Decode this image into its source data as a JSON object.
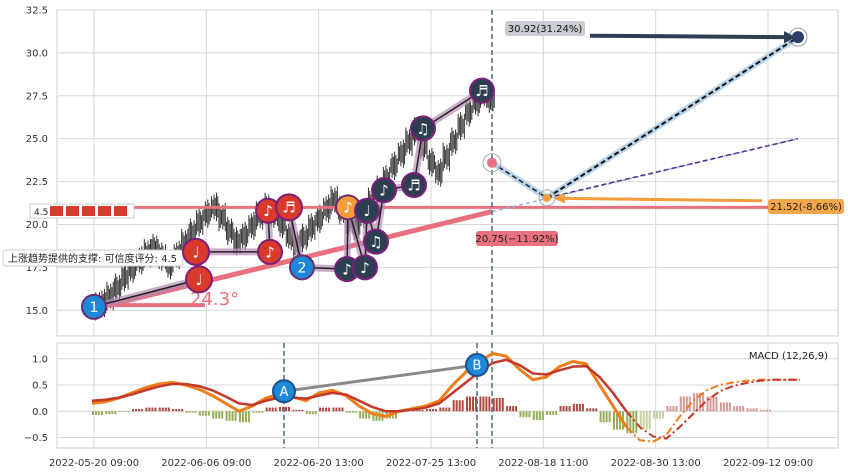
{
  "chart_data": [
    {
      "type": "candlestick-with-trendlines",
      "ylim": [
        13.5,
        32.5
      ],
      "yticks": [
        "15.0",
        "17.5",
        "20.0",
        "22.5",
        "25.0",
        "27.5",
        "30.0",
        "32.5"
      ],
      "ytick_values": [
        15.0,
        17.5,
        20.0,
        22.5,
        25.0,
        27.5,
        30.0,
        32.5
      ],
      "xticks": [
        "2022-05-20 09:00",
        "2022-06-06 09:00",
        "2022-06-20 13:00",
        "2022-07-25 13:00",
        "2022-08-18 11:00",
        "2022-08-30 13:00",
        "2022-09-12 09:00"
      ],
      "grid": true,
      "price_series": [
        15.2,
        15.4,
        15.8,
        16.3,
        16.9,
        17.4,
        17.9,
        18.3,
        18.6,
        18.1,
        17.6,
        18.2,
        18.9,
        19.5,
        20.1,
        20.6,
        21.0,
        20.4,
        19.6,
        19.0,
        19.3,
        19.9,
        20.5,
        21.0,
        20.6,
        20.0,
        19.3,
        18.8,
        19.2,
        19.8,
        20.3,
        20.9,
        21.4,
        20.8,
        20.2,
        19.8,
        20.5,
        21.3,
        22.0,
        22.6,
        23.4,
        24.1,
        24.8,
        25.4,
        24.5,
        23.6,
        23.0,
        23.9,
        24.8,
        25.7,
        26.5,
        27.1,
        27.6,
        27.3
      ],
      "support_line": {
        "from": [
          15.2
        ],
        "to": [
          20.75
        ]
      },
      "resistance_line": {
        "value": 21.0
      },
      "angle_label": "24.3°",
      "support_label": "上涨趋势提供的支撑: 可信度评分: 4.5",
      "rating_label": "4.5",
      "anchors": [
        "1",
        "2",
        "A",
        "B"
      ],
      "note_markers": [
        "♩",
        "♪",
        "♫",
        "♬"
      ],
      "annotations": [
        {
          "label": "30.92(31.24%)",
          "value": 30.92
        },
        {
          "label": "21.52(-8.66%)",
          "value": 21.52
        },
        {
          "label": "20.75(−11.92%)",
          "value": 20.75
        }
      ],
      "current_price": 23.6
    },
    {
      "type": "macd",
      "title": "MACD (12,26,9)",
      "ylim": [
        -0.7,
        1.3
      ],
      "yticks": [
        "−0.5",
        "0.0",
        "0.5",
        "1.0"
      ],
      "ytick_values": [
        -0.5,
        0.0,
        0.5,
        1.0
      ],
      "macd": [
        0.15,
        0.18,
        0.25,
        0.35,
        0.45,
        0.52,
        0.55,
        0.5,
        0.42,
        0.3,
        0.15,
        0.0,
        0.1,
        0.25,
        0.32,
        0.28,
        0.2,
        0.35,
        0.4,
        0.3,
        0.1,
        -0.05,
        -0.1,
        0.0,
        0.05,
        0.1,
        0.2,
        0.5,
        0.75,
        0.95,
        1.1,
        1.05,
        0.8,
        0.6,
        0.65,
        0.85,
        0.95,
        0.9,
        0.5,
        0.1,
        -0.3,
        -0.55,
        -0.58,
        -0.45,
        -0.1,
        0.2,
        0.4,
        0.5,
        0.55,
        0.58,
        0.6,
        0.6,
        0.6,
        0.6
      ],
      "signal": [
        0.2,
        0.22,
        0.26,
        0.32,
        0.4,
        0.47,
        0.52,
        0.52,
        0.48,
        0.4,
        0.28,
        0.15,
        0.12,
        0.2,
        0.26,
        0.26,
        0.24,
        0.3,
        0.35,
        0.32,
        0.2,
        0.08,
        0.0,
        0.0,
        0.03,
        0.07,
        0.15,
        0.35,
        0.55,
        0.75,
        0.92,
        0.98,
        0.88,
        0.72,
        0.7,
        0.78,
        0.85,
        0.86,
        0.65,
        0.35,
        0.0,
        -0.3,
        -0.48,
        -0.52,
        -0.3,
        -0.05,
        0.2,
        0.38,
        0.48,
        0.54,
        0.58,
        0.6,
        0.6,
        0.6
      ]
    }
  ],
  "colors": {
    "support": "#e8707f",
    "up_candle": "#333333",
    "grid": "#d8d8d8",
    "blue_marker": "#1e88d8",
    "red_marker": "#d93a2b",
    "dark_marker": "#2c3e50",
    "orange": "#f39c3a",
    "macd_line": "#f07c1a",
    "signal_line": "#c0392b",
    "hist_pos": "#a5342a",
    "hist_neg": "#8aa347"
  }
}
